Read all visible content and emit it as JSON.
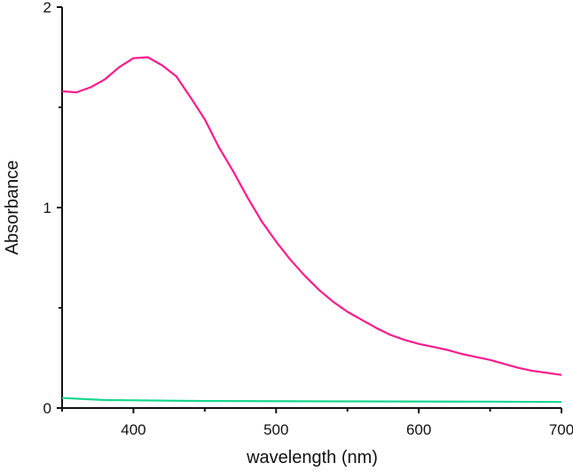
{
  "chart_data": {
    "type": "line",
    "title": "",
    "xlabel": "wavelength (nm)",
    "ylabel": "Absorbance",
    "xlim": [
      350,
      700
    ],
    "ylim": [
      0,
      2
    ],
    "x_ticks": [
      400,
      500,
      600,
      700
    ],
    "x_tick_labels": [
      "400",
      "500",
      "600",
      "700"
    ],
    "x_minor_ticks": [
      350,
      450,
      550,
      650
    ],
    "y_ticks": [
      0,
      1,
      2
    ],
    "y_tick_labels": [
      "0",
      "1",
      "2"
    ],
    "y_minor_ticks": [
      0.5,
      1.5
    ],
    "grid": false,
    "series": [
      {
        "color": "#ff1a8c",
        "x": [
          350,
          360,
          370,
          380,
          390,
          400,
          410,
          420,
          430,
          440,
          450,
          460,
          470,
          480,
          490,
          500,
          510,
          520,
          530,
          540,
          550,
          560,
          570,
          580,
          590,
          600,
          610,
          620,
          630,
          640,
          650,
          660,
          670,
          680,
          690,
          700
        ],
        "y": [
          1.58,
          1.575,
          1.6,
          1.64,
          1.7,
          1.745,
          1.75,
          1.71,
          1.655,
          1.55,
          1.44,
          1.3,
          1.18,
          1.05,
          0.93,
          0.83,
          0.74,
          0.66,
          0.59,
          0.53,
          0.48,
          0.44,
          0.4,
          0.365,
          0.34,
          0.32,
          0.305,
          0.29,
          0.27,
          0.255,
          0.24,
          0.22,
          0.2,
          0.185,
          0.175,
          0.165
        ]
      },
      {
        "color": "#1ad68f",
        "x": [
          350,
          380,
          450,
          550,
          650,
          700
        ],
        "y": [
          0.05,
          0.04,
          0.035,
          0.033,
          0.032,
          0.03
        ]
      }
    ]
  }
}
